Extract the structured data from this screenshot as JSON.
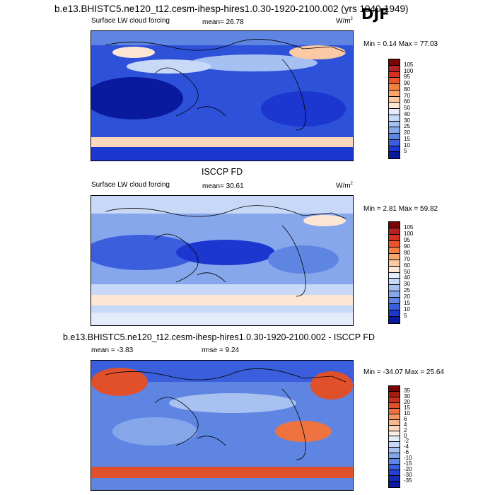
{
  "header": {
    "main_title": "b.e13.BHISTC5.ne120_t12.cesm-ihesp-hires1.0.30-1920-2100.002 (yrs 1940-1949)",
    "season": "DJF"
  },
  "panels": [
    {
      "id": "model",
      "title": "",
      "variable": "Surface LW cloud forcing",
      "stat1": "mean=  26.78",
      "stat2": "",
      "units": "W/m",
      "units_sup": "2",
      "minmax": "Min =   0.14 Max =  77.03",
      "colorbar": {
        "labels": [
          "105",
          "100",
          "95",
          "90",
          "80",
          "70",
          "60",
          "50",
          "40",
          "30",
          "25",
          "20",
          "15",
          "10",
          "5"
        ],
        "colors": [
          "#7a0403",
          "#b22222",
          "#d6301e",
          "#e8552b",
          "#f2803f",
          "#f7a56a",
          "#fbc9a3",
          "#fde7d4",
          "#e4ecfb",
          "#c8d8f7",
          "#a6c0f1",
          "#86a7eb",
          "#5f85e3",
          "#3b5fdc",
          "#1c36d0",
          "#0a1a9e"
        ]
      }
    },
    {
      "id": "obs",
      "title": "ISCCP FD",
      "variable": "Surface LW cloud forcing",
      "stat1": "mean=  30.61",
      "stat2": "",
      "units": "W/m",
      "units_sup": "2",
      "minmax": "Min =   2.81 Max =  59.82",
      "colorbar": {
        "labels": [
          "105",
          "100",
          "95",
          "90",
          "80",
          "70",
          "60",
          "50",
          "40",
          "30",
          "25",
          "20",
          "15",
          "10",
          "5"
        ],
        "colors": [
          "#7a0403",
          "#b22222",
          "#d6301e",
          "#e8552b",
          "#f2803f",
          "#f7a56a",
          "#fbc9a3",
          "#fde7d4",
          "#e4ecfb",
          "#c8d8f7",
          "#a6c0f1",
          "#86a7eb",
          "#5f85e3",
          "#3b5fdc",
          "#1c36d0",
          "#0a1a9e"
        ]
      }
    },
    {
      "id": "diff",
      "title": "b.e13.BHISTC5.ne120_t12.cesm-ihesp-hires1.0.30-1920-2100.002 - ISCCP FD",
      "variable": "",
      "stat1": "mean =  -3.83",
      "stat2": "rmse =   9.24",
      "units": "",
      "units_sup": "",
      "minmax": "Min = -34.07 Max =  25.64",
      "colorbar": {
        "labels": [
          "35",
          "30",
          "20",
          "15",
          "10",
          "6",
          "4",
          "2",
          "0",
          "-2",
          "-4",
          "-6",
          "-10",
          "-15",
          "-20",
          "-30",
          "-35"
        ],
        "colors": [
          "#7a0403",
          "#a81d12",
          "#c8321f",
          "#e0502b",
          "#ee7340",
          "#f49562",
          "#f8b78c",
          "#fbd8bd",
          "#fdeee3",
          "#e4ecfb",
          "#c9d8f6",
          "#a9c1f0",
          "#86a6ea",
          "#5f85e3",
          "#3b5fdc",
          "#2242cf",
          "#142ab5",
          "#0a1a9e"
        ]
      }
    }
  ]
}
